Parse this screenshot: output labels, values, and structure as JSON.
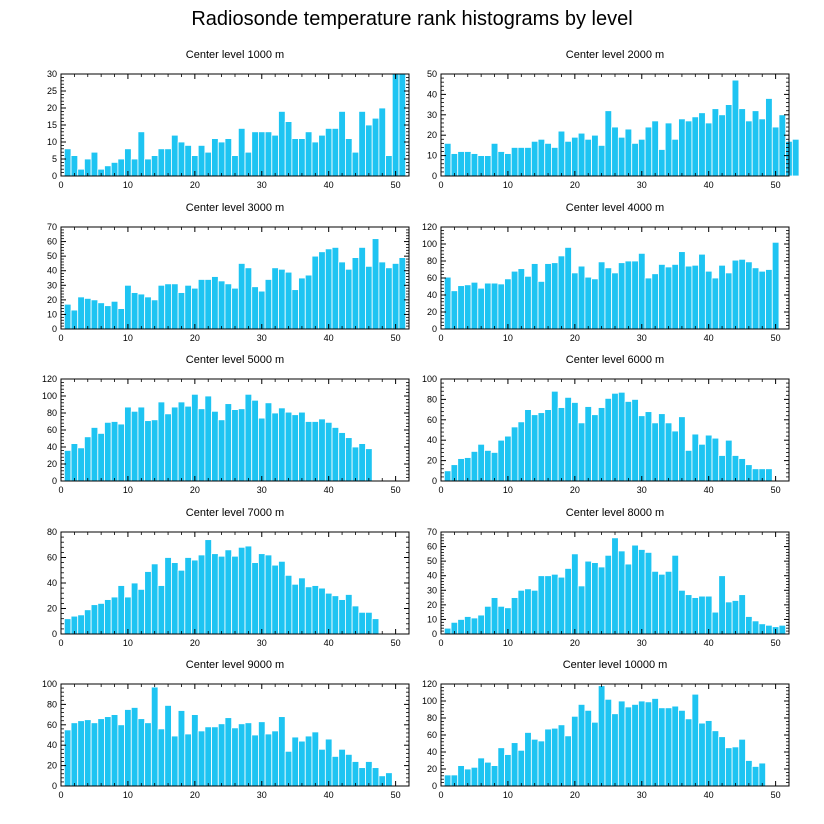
{
  "title": "Radiosonde temperature rank histograms by level",
  "colors": {
    "bar": "#1ec4f2",
    "bar_edge": "#ffffff",
    "axis": "#000000",
    "background": "#ffffff"
  },
  "chart_data": [
    {
      "type": "bar",
      "title": "Center level 1000 m",
      "xlim": [
        0,
        52
      ],
      "ylim": [
        0,
        30
      ],
      "xticks": [
        0,
        10,
        20,
        30,
        40,
        50
      ],
      "yticks": [
        0,
        5,
        10,
        15,
        20,
        25,
        30
      ],
      "values": [
        8,
        6,
        2,
        5,
        7,
        2,
        3,
        4,
        5,
        8,
        5,
        13,
        5,
        6,
        8,
        8,
        12,
        10,
        9,
        6,
        9,
        7,
        11,
        10,
        11,
        6,
        14,
        7,
        13,
        13,
        13,
        12,
        19,
        16,
        11,
        11,
        13,
        10,
        12,
        14,
        14,
        19,
        11,
        7,
        19,
        15,
        17,
        20,
        6,
        30,
        30
      ]
    },
    {
      "type": "bar",
      "title": "Center level 2000 m",
      "xlim": [
        0,
        52
      ],
      "ylim": [
        0,
        50
      ],
      "xticks": [
        0,
        10,
        20,
        30,
        40,
        50
      ],
      "yticks": [
        0,
        10,
        20,
        30,
        40,
        50
      ],
      "values": [
        16,
        11,
        12,
        12,
        11,
        10,
        10,
        16,
        12,
        11,
        14,
        14,
        14,
        17,
        18,
        16,
        14,
        22,
        17,
        19,
        21,
        18,
        20,
        15,
        32,
        24,
        19,
        23,
        16,
        18,
        24,
        27,
        13,
        26,
        18,
        28,
        27,
        29,
        31,
        26,
        33,
        30,
        35,
        47,
        33,
        27,
        32,
        28,
        38,
        24,
        30,
        17,
        18
      ]
    },
    {
      "type": "bar",
      "title": "Center level 3000 m",
      "xlim": [
        0,
        52
      ],
      "ylim": [
        0,
        70
      ],
      "xticks": [
        0,
        10,
        20,
        30,
        40,
        50
      ],
      "yticks": [
        0,
        10,
        20,
        30,
        40,
        50,
        60,
        70
      ],
      "values": [
        17,
        13,
        22,
        21,
        20,
        18,
        16,
        19,
        14,
        30,
        25,
        24,
        22,
        20,
        30,
        31,
        31,
        25,
        30,
        28,
        34,
        34,
        36,
        33,
        31,
        28,
        45,
        42,
        29,
        26,
        34,
        42,
        41,
        39,
        27,
        35,
        37,
        50,
        53,
        55,
        56,
        46,
        41,
        49,
        56,
        43,
        62,
        46,
        42,
        45,
        49
      ]
    },
    {
      "type": "bar",
      "title": "Center level 4000 m",
      "xlim": [
        0,
        52
      ],
      "ylim": [
        0,
        120
      ],
      "xticks": [
        0,
        10,
        20,
        30,
        40,
        50
      ],
      "yticks": [
        0,
        20,
        40,
        60,
        80,
        100,
        120
      ],
      "values": [
        61,
        45,
        51,
        52,
        55,
        48,
        54,
        54,
        53,
        59,
        68,
        71,
        62,
        77,
        56,
        77,
        78,
        86,
        96,
        66,
        74,
        61,
        59,
        79,
        72,
        66,
        78,
        80,
        80,
        89,
        60,
        65,
        76,
        73,
        76,
        91,
        74,
        75,
        88,
        68,
        60,
        75,
        66,
        81,
        82,
        79,
        72,
        68,
        70,
        102
      ]
    },
    {
      "type": "bar",
      "title": "Center level 5000 m",
      "xlim": [
        0,
        52
      ],
      "ylim": [
        0,
        120
      ],
      "xticks": [
        0,
        10,
        20,
        30,
        40,
        50
      ],
      "yticks": [
        0,
        20,
        40,
        60,
        80,
        100,
        120
      ],
      "values": [
        36,
        44,
        39,
        52,
        63,
        56,
        69,
        70,
        67,
        87,
        82,
        87,
        71,
        72,
        93,
        79,
        87,
        93,
        88,
        102,
        85,
        100,
        82,
        72,
        91,
        84,
        85,
        102,
        95,
        74,
        92,
        80,
        86,
        81,
        78,
        81,
        70,
        70,
        73,
        69,
        63,
        57,
        51,
        40,
        44,
        38
      ]
    },
    {
      "type": "bar",
      "title": "Center level 6000 m",
      "xlim": [
        0,
        52
      ],
      "ylim": [
        0,
        100
      ],
      "xticks": [
        0,
        10,
        20,
        30,
        40,
        50
      ],
      "yticks": [
        0,
        20,
        40,
        60,
        80,
        100
      ],
      "values": [
        10,
        16,
        22,
        23,
        29,
        36,
        30,
        28,
        40,
        44,
        53,
        58,
        70,
        65,
        67,
        70,
        88,
        72,
        82,
        77,
        57,
        73,
        65,
        72,
        81,
        86,
        87,
        78,
        80,
        64,
        68,
        57,
        66,
        57,
        49,
        63,
        30,
        46,
        36,
        45,
        42,
        25,
        40,
        25,
        22,
        16,
        12,
        12,
        12
      ]
    },
    {
      "type": "bar",
      "title": "Center level 7000 m",
      "xlim": [
        0,
        52
      ],
      "ylim": [
        0,
        80
      ],
      "xticks": [
        0,
        10,
        20,
        30,
        40,
        50
      ],
      "yticks": [
        0,
        20,
        40,
        60,
        80
      ],
      "values": [
        12,
        14,
        15,
        19,
        23,
        24,
        27,
        29,
        38,
        29,
        40,
        35,
        49,
        55,
        38,
        60,
        56,
        50,
        60,
        58,
        62,
        74,
        63,
        61,
        66,
        61,
        68,
        69,
        56,
        63,
        62,
        54,
        57,
        46,
        39,
        44,
        37,
        38,
        36,
        32,
        30,
        27,
        31,
        22,
        17,
        17,
        12
      ]
    },
    {
      "type": "bar",
      "title": "Center level 8000 m",
      "xlim": [
        0,
        52
      ],
      "ylim": [
        0,
        70
      ],
      "xticks": [
        0,
        10,
        20,
        30,
        40,
        50
      ],
      "yticks": [
        0,
        10,
        20,
        30,
        40,
        50,
        60,
        70
      ],
      "values": [
        4,
        8,
        10,
        12,
        11,
        13,
        19,
        25,
        19,
        18,
        25,
        30,
        31,
        30,
        40,
        40,
        41,
        39,
        45,
        55,
        33,
        50,
        49,
        46,
        54,
        66,
        57,
        48,
        61,
        58,
        56,
        43,
        41,
        43,
        54,
        30,
        27,
        25,
        26,
        26,
        15,
        40,
        22,
        23,
        27,
        12,
        9,
        7,
        6,
        5,
        6
      ]
    },
    {
      "type": "bar",
      "title": "Center level 9000 m",
      "xlim": [
        0,
        52
      ],
      "ylim": [
        0,
        100
      ],
      "xticks": [
        0,
        10,
        20,
        30,
        40,
        50
      ],
      "yticks": [
        0,
        20,
        40,
        60,
        80,
        100
      ],
      "values": [
        55,
        62,
        64,
        65,
        62,
        66,
        68,
        70,
        60,
        75,
        77,
        66,
        62,
        97,
        56,
        79,
        49,
        74,
        51,
        70,
        54,
        58,
        58,
        61,
        67,
        57,
        61,
        62,
        50,
        63,
        51,
        54,
        68,
        34,
        48,
        44,
        49,
        53,
        36,
        46,
        29,
        36,
        31,
        24,
        18,
        24,
        18,
        10,
        13
      ]
    },
    {
      "type": "bar",
      "title": "Center level 10000 m",
      "xlim": [
        0,
        52
      ],
      "ylim": [
        0,
        120
      ],
      "xticks": [
        0,
        10,
        20,
        30,
        40,
        50
      ],
      "yticks": [
        0,
        20,
        40,
        60,
        80,
        100,
        120
      ],
      "values": [
        13,
        13,
        24,
        20,
        22,
        33,
        28,
        24,
        45,
        37,
        51,
        42,
        63,
        55,
        53,
        67,
        68,
        72,
        59,
        82,
        96,
        89,
        75,
        118,
        102,
        85,
        100,
        93,
        96,
        100,
        99,
        103,
        92,
        92,
        94,
        89,
        79,
        108,
        74,
        77,
        65,
        58,
        45,
        46,
        55,
        30,
        23,
        27
      ]
    }
  ]
}
